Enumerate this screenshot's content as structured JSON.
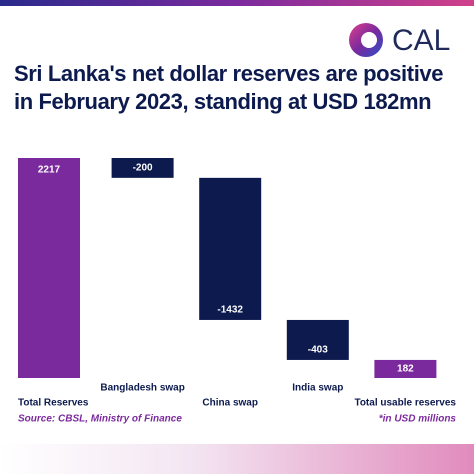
{
  "logo": "CAL",
  "chart_data": {
    "type": "waterfall",
    "title": "Sri Lanka's net dollar reserves are positive in February 2023, standing at USD 182mn",
    "categories": [
      "Total Reserves",
      "Bangladesh swap",
      "China swap",
      "India swap",
      "Total usable reserves"
    ],
    "values": [
      2217,
      -200,
      -1432,
      -403,
      182
    ],
    "colors": [
      "#7b2a9e",
      "#0c1a4e",
      "#0c1a4e",
      "#0c1a4e",
      "#7b2a9e"
    ],
    "source": "Source: CBSL, Ministry of Finance",
    "note": "*in USD millions"
  }
}
